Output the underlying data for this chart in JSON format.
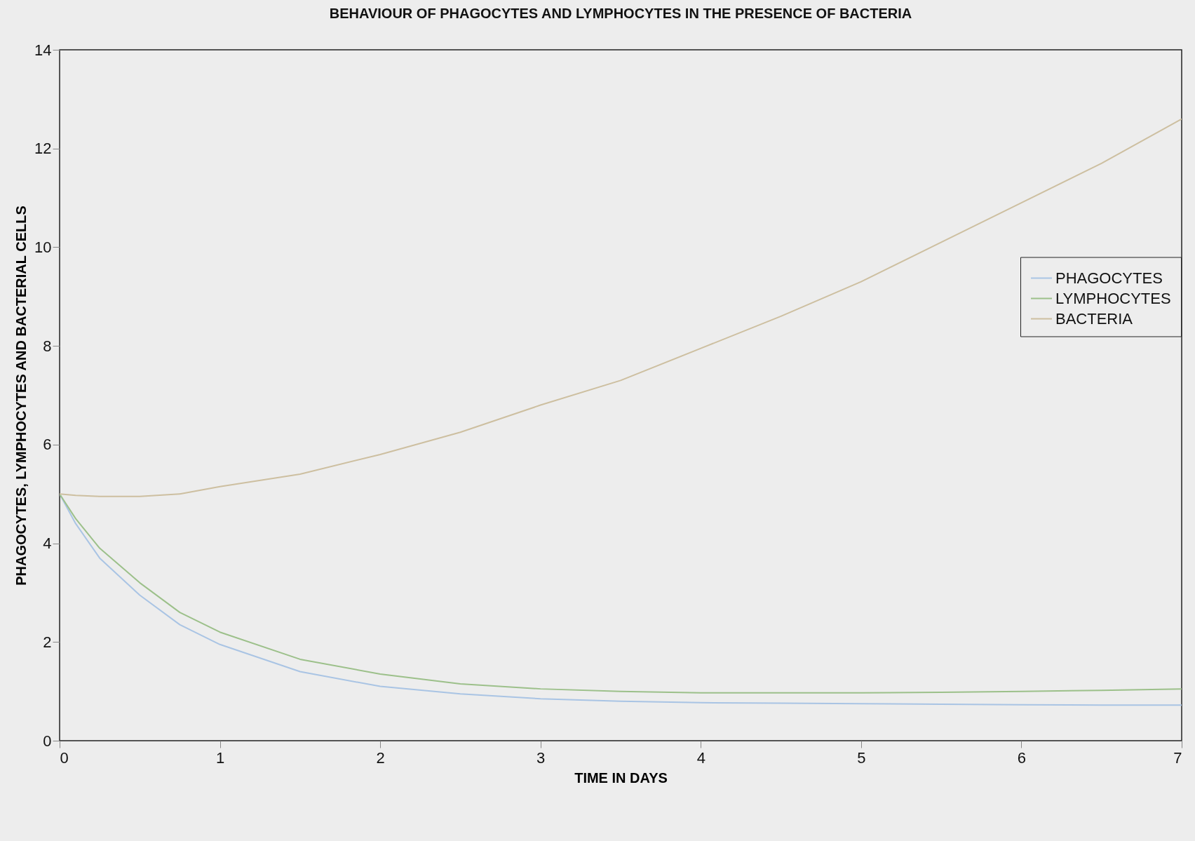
{
  "chart_data": {
    "type": "line",
    "title": "BEHAVIOUR OF PHAGOCYTES AND LYMPHOCYTES IN THE PRESENCE OF BACTERIA",
    "xlabel": "TIME IN DAYS",
    "ylabel": "PHAGOCYTES, LYMPHOCYTES AND BACTERIAL CELLS",
    "x": [
      0,
      0.1,
      0.25,
      0.5,
      0.75,
      1,
      1.5,
      2,
      2.5,
      3,
      3.5,
      4,
      4.5,
      5,
      5.5,
      6,
      6.5,
      7
    ],
    "series": [
      {
        "name": "PHAGOCYTES",
        "color": "#a9c4e4",
        "values": [
          5.0,
          4.4,
          3.7,
          2.95,
          2.35,
          1.95,
          1.4,
          1.1,
          0.95,
          0.85,
          0.8,
          0.77,
          0.76,
          0.75,
          0.74,
          0.73,
          0.72,
          0.72
        ]
      },
      {
        "name": "LYMPHOCYTES",
        "color": "#9cc08a",
        "values": [
          5.0,
          4.5,
          3.9,
          3.2,
          2.6,
          2.2,
          1.65,
          1.35,
          1.15,
          1.05,
          1.0,
          0.97,
          0.97,
          0.97,
          0.98,
          1.0,
          1.02,
          1.05
        ]
      },
      {
        "name": "BACTERIA",
        "color": "#cdbfa0",
        "values": [
          5.0,
          4.97,
          4.95,
          4.95,
          5.0,
          5.15,
          5.4,
          5.8,
          6.25,
          6.8,
          7.3,
          7.95,
          8.6,
          9.3,
          10.1,
          10.9,
          11.7,
          12.6
        ]
      }
    ],
    "xlim": [
      0,
      7
    ],
    "xticks": [
      0,
      1,
      2,
      3,
      4,
      5,
      6,
      7
    ],
    "ylim": [
      0,
      14
    ],
    "yticks": [
      0,
      2,
      4,
      6,
      8,
      10,
      12,
      14
    ],
    "legend": "right",
    "line_style": "solid"
  }
}
